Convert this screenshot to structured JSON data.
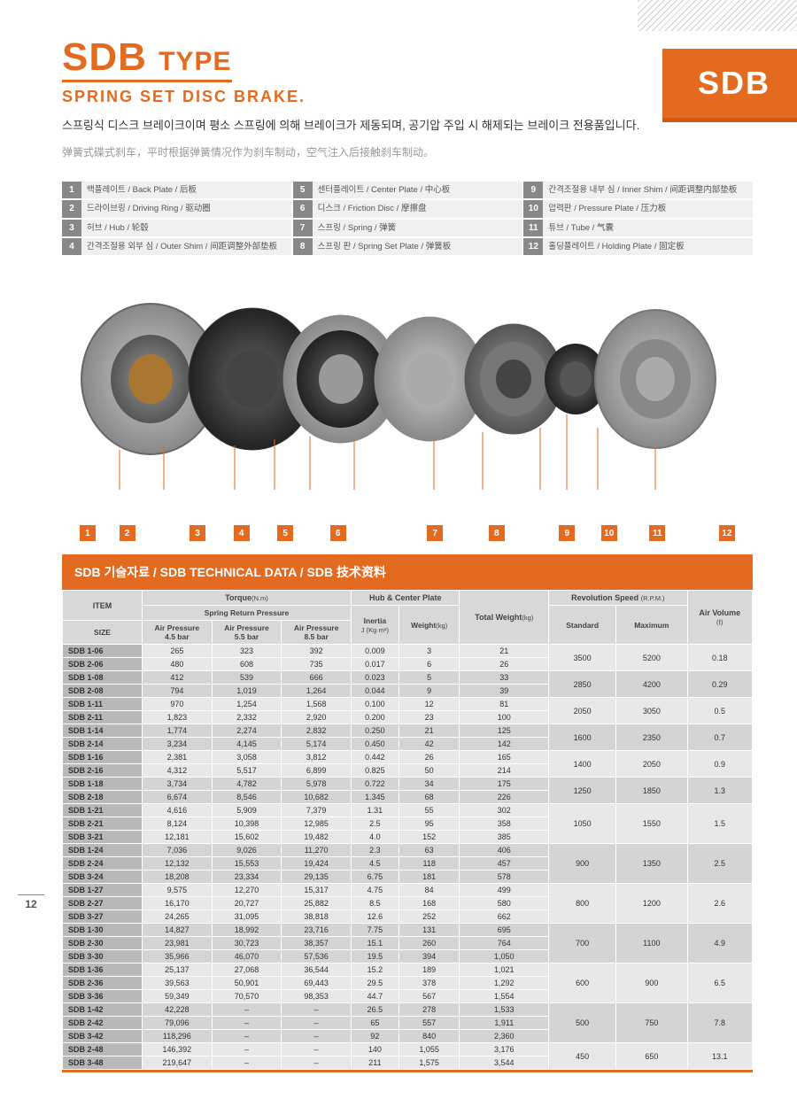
{
  "page_number": "12",
  "badge": "SDB",
  "title_main": "SDB",
  "title_sub": "TYPE",
  "subtitle": "SPRING SET DISC BRAKE.",
  "desc_kr": "스프링식 디스크 브레이크이며 평소 스프링에 의해 브레이크가 제동되며, 공기압 주입 시 해제되는 브레이크 전용품입니다.",
  "desc_cn": "弹簧式碟式刹车，平时根据弹簧情况作为刹车制动，空气注入后接触刹车制动。",
  "legend": [
    {
      "n": "1",
      "t": "백플레이트 / Back Plate / 后板"
    },
    {
      "n": "5",
      "t": "센터플레이트 / Center Plate / 中心板"
    },
    {
      "n": "9",
      "t": "간격조절용 내부 심 / Inner Shim / 间距调整内部垫板"
    },
    {
      "n": "2",
      "t": "드라이브링 / Driving Ring / 驱动圈"
    },
    {
      "n": "6",
      "t": "디스크 / Friction Disc / 摩擦盘"
    },
    {
      "n": "10",
      "t": "압력판 / Pressure Plate / 压力板"
    },
    {
      "n": "3",
      "t": "허브 / Hub / 轮毂"
    },
    {
      "n": "7",
      "t": "스프링 / Spring / 弹簧"
    },
    {
      "n": "11",
      "t": "튜브 / Tube / 气囊"
    },
    {
      "n": "4",
      "t": "간격조절용 외부 심 / Outer Shim / 间距调整外部垫板"
    },
    {
      "n": "8",
      "t": "스프링 판 / Spring Set Plate / 弹簧板"
    },
    {
      "n": "12",
      "t": "홀딩플레이트 / Holding Plate / 固定板"
    }
  ],
  "callouts": [
    "1",
    "2",
    "3",
    "4",
    "5",
    "6",
    "7",
    "8",
    "9",
    "10",
    "11",
    "12"
  ],
  "tech_header": "SDB 기술자료 / SDB TECHNICAL DATA / SDB 技术资料",
  "th": {
    "item": "ITEM",
    "size": "SIZE",
    "torque": "Torque",
    "torque_u": "(N.m)",
    "srp": "Spring Return Pressure",
    "ap1": "Air Pressure",
    "b45": "4.5 bar",
    "ap2": "Air Pressure",
    "b55": "5.5 bar",
    "ap3": "Air Pressure",
    "b85": "8.5 bar",
    "hcp": "Hub & Center Plate",
    "inertia": "Inertia",
    "inertia_u": "J (Kg·m²)",
    "weight": "Weight",
    "weight_u": "(kg)",
    "total": "Total Weight",
    "total_u": "(kg)",
    "rev": "Revolution Speed",
    "rev_u": "(R.P.M.)",
    "std": "Standard",
    "max": "Maximum",
    "av": "Air Volume",
    "av_u": "(ℓ)"
  },
  "groups": [
    {
      "std": "3500",
      "max": "5200",
      "av": "0.18",
      "rows": [
        {
          "s": "SDB 1-06",
          "v": [
            "265",
            "323",
            "392",
            "0.009",
            "3",
            "21"
          ]
        },
        {
          "s": "SDB 2-06",
          "v": [
            "480",
            "608",
            "735",
            "0.017",
            "6",
            "26"
          ]
        }
      ]
    },
    {
      "std": "2850",
      "max": "4200",
      "av": "0.29",
      "rows": [
        {
          "s": "SDB 1-08",
          "v": [
            "412",
            "539",
            "666",
            "0.023",
            "5",
            "33"
          ]
        },
        {
          "s": "SDB 2-08",
          "v": [
            "794",
            "1,019",
            "1,264",
            "0.044",
            "9",
            "39"
          ]
        }
      ]
    },
    {
      "std": "2050",
      "max": "3050",
      "av": "0.5",
      "rows": [
        {
          "s": "SDB 1-11",
          "v": [
            "970",
            "1,254",
            "1,568",
            "0.100",
            "12",
            "81"
          ]
        },
        {
          "s": "SDB 2-11",
          "v": [
            "1,823",
            "2,332",
            "2,920",
            "0.200",
            "23",
            "100"
          ]
        }
      ]
    },
    {
      "std": "1600",
      "max": "2350",
      "av": "0.7",
      "rows": [
        {
          "s": "SDB 1-14",
          "v": [
            "1,774",
            "2,274",
            "2,832",
            "0.250",
            "21",
            "125"
          ]
        },
        {
          "s": "SDB 2-14",
          "v": [
            "3,234",
            "4,145",
            "5,174",
            "0.450",
            "42",
            "142"
          ]
        }
      ]
    },
    {
      "std": "1400",
      "max": "2050",
      "av": "0.9",
      "rows": [
        {
          "s": "SDB 1-16",
          "v": [
            "2,381",
            "3,058",
            "3,812",
            "0.442",
            "26",
            "165"
          ]
        },
        {
          "s": "SDB 2-16",
          "v": [
            "4,312",
            "5,517",
            "6,899",
            "0.825",
            "50",
            "214"
          ]
        }
      ]
    },
    {
      "std": "1250",
      "max": "1850",
      "av": "1.3",
      "rows": [
        {
          "s": "SDB 1-18",
          "v": [
            "3,734",
            "4,782",
            "5,978",
            "0.722",
            "34",
            "175"
          ]
        },
        {
          "s": "SDB 2-18",
          "v": [
            "6,674",
            "8,546",
            "10,682",
            "1.345",
            "68",
            "226"
          ]
        }
      ]
    },
    {
      "std": "1050",
      "max": "1550",
      "av": "1.5",
      "rows": [
        {
          "s": "SDB 1-21",
          "v": [
            "4,616",
            "5,909",
            "7,379",
            "1.31",
            "55",
            "302"
          ]
        },
        {
          "s": "SDB 2-21",
          "v": [
            "8,124",
            "10,398",
            "12,985",
            "2.5",
            "95",
            "358"
          ]
        },
        {
          "s": "SDB 3-21",
          "v": [
            "12,181",
            "15,602",
            "19,482",
            "4.0",
            "152",
            "385"
          ]
        }
      ]
    },
    {
      "std": "900",
      "max": "1350",
      "av": "2.5",
      "rows": [
        {
          "s": "SDB 1-24",
          "v": [
            "7,036",
            "9,026",
            "11,270",
            "2.3",
            "63",
            "406"
          ]
        },
        {
          "s": "SDB 2-24",
          "v": [
            "12,132",
            "15,553",
            "19,424",
            "4.5",
            "118",
            "457"
          ]
        },
        {
          "s": "SDB 3-24",
          "v": [
            "18,208",
            "23,334",
            "29,135",
            "6.75",
            "181",
            "578"
          ]
        }
      ]
    },
    {
      "std": "800",
      "max": "1200",
      "av": "2.6",
      "rows": [
        {
          "s": "SDB 1-27",
          "v": [
            "9,575",
            "12,270",
            "15,317",
            "4.75",
            "84",
            "499"
          ]
        },
        {
          "s": "SDB 2-27",
          "v": [
            "16,170",
            "20,727",
            "25,882",
            "8.5",
            "168",
            "580"
          ]
        },
        {
          "s": "SDB 3-27",
          "v": [
            "24,265",
            "31,095",
            "38,818",
            "12.6",
            "252",
            "662"
          ]
        }
      ]
    },
    {
      "std": "700",
      "max": "1100",
      "av": "4.9",
      "rows": [
        {
          "s": "SDB 1-30",
          "v": [
            "14,827",
            "18,992",
            "23,716",
            "7.75",
            "131",
            "695"
          ]
        },
        {
          "s": "SDB 2-30",
          "v": [
            "23,981",
            "30,723",
            "38,357",
            "15.1",
            "260",
            "764"
          ]
        },
        {
          "s": "SDB 3-30",
          "v": [
            "35,966",
            "46,070",
            "57,536",
            "19.5",
            "394",
            "1,050"
          ]
        }
      ]
    },
    {
      "std": "600",
      "max": "900",
      "av": "6.5",
      "rows": [
        {
          "s": "SDB 1-36",
          "v": [
            "25,137",
            "27,068",
            "36,544",
            "15.2",
            "189",
            "1,021"
          ]
        },
        {
          "s": "SDB 2-36",
          "v": [
            "39,563",
            "50,901",
            "69,443",
            "29.5",
            "378",
            "1,292"
          ]
        },
        {
          "s": "SDB 3-36",
          "v": [
            "59,349",
            "70,570",
            "98,353",
            "44.7",
            "567",
            "1,554"
          ]
        }
      ]
    },
    {
      "std": "500",
      "max": "750",
      "av": "7.8",
      "rows": [
        {
          "s": "SDB 1-42",
          "v": [
            "42,228",
            "–",
            "–",
            "26.5",
            "278",
            "1,533"
          ]
        },
        {
          "s": "SDB 2-42",
          "v": [
            "79,096",
            "–",
            "–",
            "65",
            "557",
            "1,911"
          ]
        },
        {
          "s": "SDB 3-42",
          "v": [
            "118,296",
            "–",
            "–",
            "92",
            "840",
            "2,360"
          ]
        }
      ]
    },
    {
      "std": "450",
      "max": "650",
      "av": "13.1",
      "rows": [
        {
          "s": "SDB 2-48",
          "v": [
            "146,392",
            "–",
            "–",
            "140",
            "1,055",
            "3,176"
          ]
        },
        {
          "s": "SDB 3-48",
          "v": [
            "219,647",
            "–",
            "–",
            "211",
            "1,575",
            "3,544"
          ]
        }
      ]
    }
  ],
  "colors": {
    "accent": "#e36a1f"
  }
}
